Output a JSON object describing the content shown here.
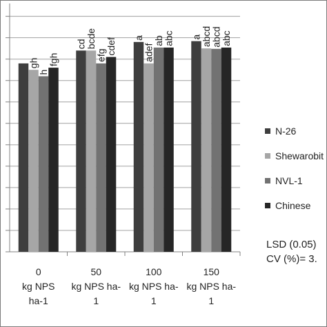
{
  "colors": {
    "N-26": "#3e3e3e",
    "Shewarobit": "#a6a6a6",
    "NVL-1": "#727272",
    "Chinese": "#262626",
    "axis": "#808080",
    "grid": "#a0a0a0"
  },
  "chart_data": {
    "type": "bar",
    "categories": [
      "0\nkg NPS\nha-1",
      "50\nkg NPS ha-\n1",
      "100\nkg NPS ha-\n1",
      "150\nkg NPS ha-\n1"
    ],
    "series": [
      {
        "name": "N-26",
        "values": [
          4.4,
          4.7,
          4.9,
          4.92
        ],
        "letters": [
          "",
          "cd",
          "a",
          "a"
        ]
      },
      {
        "name": "Shewarobit",
        "values": [
          4.25,
          4.7,
          4.4,
          4.75
        ],
        "letters": [
          "gh",
          "bcde",
          "adef",
          "abcd"
        ]
      },
      {
        "name": "NVL-1",
        "values": [
          4.1,
          4.4,
          4.77,
          4.74
        ],
        "letters": [
          "h",
          "efg",
          "ab",
          "abcd"
        ]
      },
      {
        "name": "Chinese",
        "values": [
          4.3,
          4.55,
          4.77,
          4.77
        ],
        "letters": [
          "fgh",
          "cdef",
          "abc",
          "abc"
        ]
      }
    ],
    "ylim": [
      0,
      5.8
    ],
    "yticks": [
      0,
      0.5,
      1,
      1.5,
      2,
      2.5,
      3,
      3.5,
      4,
      4.5,
      5,
      5.5
    ],
    "ytick_labels": [
      "",
      "",
      "",
      "",
      "",
      "",
      "",
      "",
      "",
      "",
      "",
      ""
    ],
    "grid": true,
    "legend": "right",
    "annotations": [
      "LSD (0.05)",
      "CV (%)= 3."
    ]
  }
}
